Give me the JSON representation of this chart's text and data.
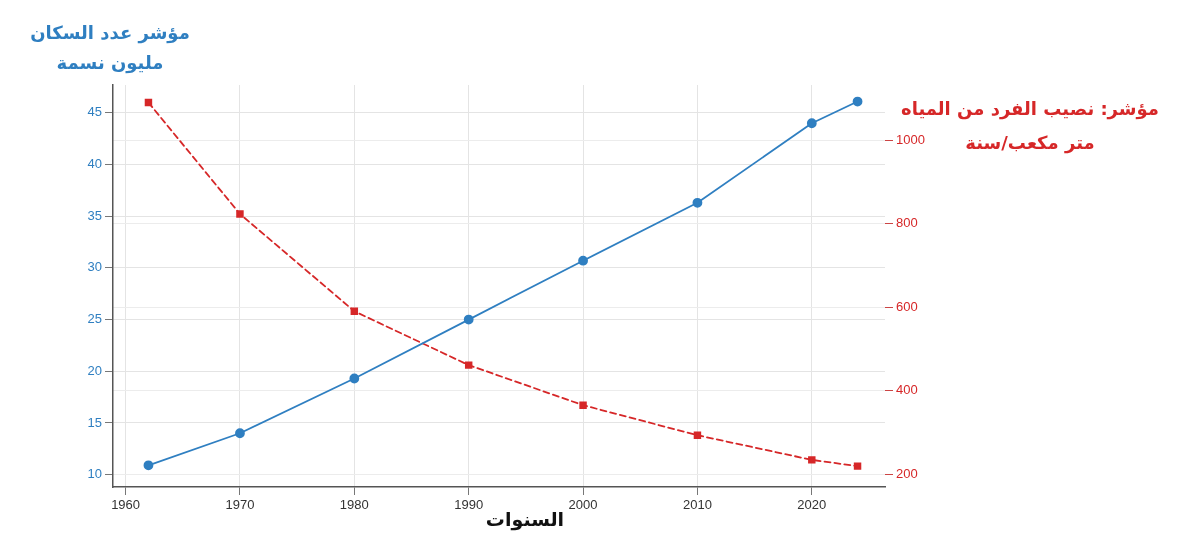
{
  "chart_data": {
    "type": "line",
    "xlabel": "السنوات",
    "ylabel": "مؤشر عدد السكان\nمليون نسمة",
    "y2label": "مؤشر: نصيب الفرد من المياه\nمتر مكعب/سنة",
    "x": [
      1962,
      1970,
      1980,
      1990,
      2000,
      2010,
      2020,
      2024
    ],
    "series": [
      {
        "color": "#2f7fc1",
        "values": [
          10.9,
          14.0,
          19.3,
          25.0,
          30.7,
          36.3,
          44.0,
          46.1
        ],
        "marker": "circle",
        "line_style": "solid"
      },
      {
        "color": "#d62728",
        "values": [
          1090,
          823,
          590,
          461,
          365,
          293,
          234,
          219
        ],
        "axis": "y2",
        "marker": "square",
        "line_style": "dashed"
      }
    ],
    "xlim": [
      1958.9,
      2026.4
    ],
    "xticks": [
      1960,
      1970,
      1980,
      1990,
      2000,
      2010,
      2020
    ],
    "ylim": [
      8.8,
      47.7
    ],
    "yticks": [
      10,
      15,
      20,
      25,
      30,
      35,
      40,
      45
    ],
    "y2lim": [
      169,
      1132
    ],
    "y2ticks": [
      200,
      400,
      600,
      800,
      1000
    ],
    "grid": true,
    "legend": false
  }
}
